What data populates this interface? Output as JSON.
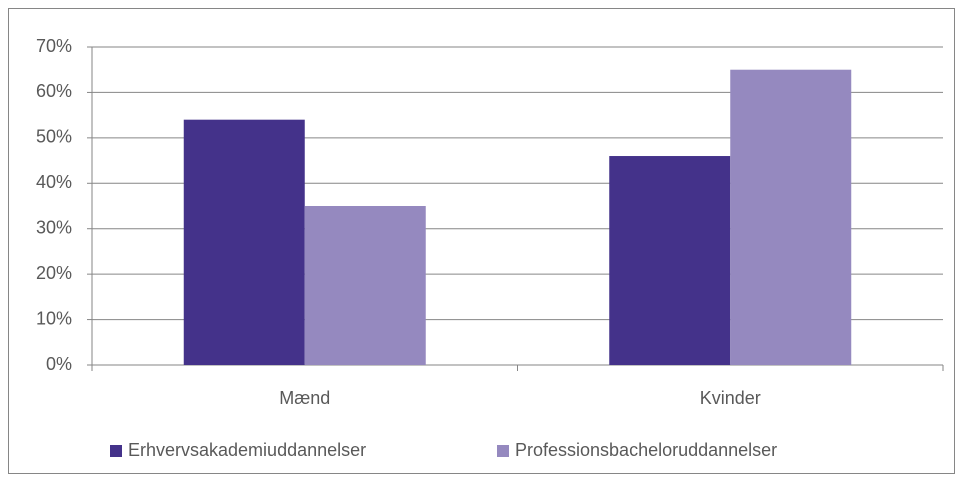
{
  "chart_data": {
    "type": "bar",
    "categories": [
      "Mænd",
      "Kvinder"
    ],
    "series": [
      {
        "name": "Erhvervsakademiuddannelser",
        "color": "#44328a",
        "values": [
          54,
          46
        ]
      },
      {
        "name": "Professionsbacheloruddannelser",
        "color": "#9589bf",
        "values": [
          35,
          65
        ]
      }
    ],
    "ylim": [
      0,
      70
    ],
    "yticks": [
      {
        "value": 0,
        "label": "0%"
      },
      {
        "value": 10,
        "label": "10%"
      },
      {
        "value": 20,
        "label": "20%"
      },
      {
        "value": 30,
        "label": "30%"
      },
      {
        "value": 40,
        "label": "40%"
      },
      {
        "value": 50,
        "label": "50%"
      },
      {
        "value": 60,
        "label": "60%"
      },
      {
        "value": 70,
        "label": "70%"
      }
    ],
    "grid": true,
    "legend": "bottom"
  }
}
